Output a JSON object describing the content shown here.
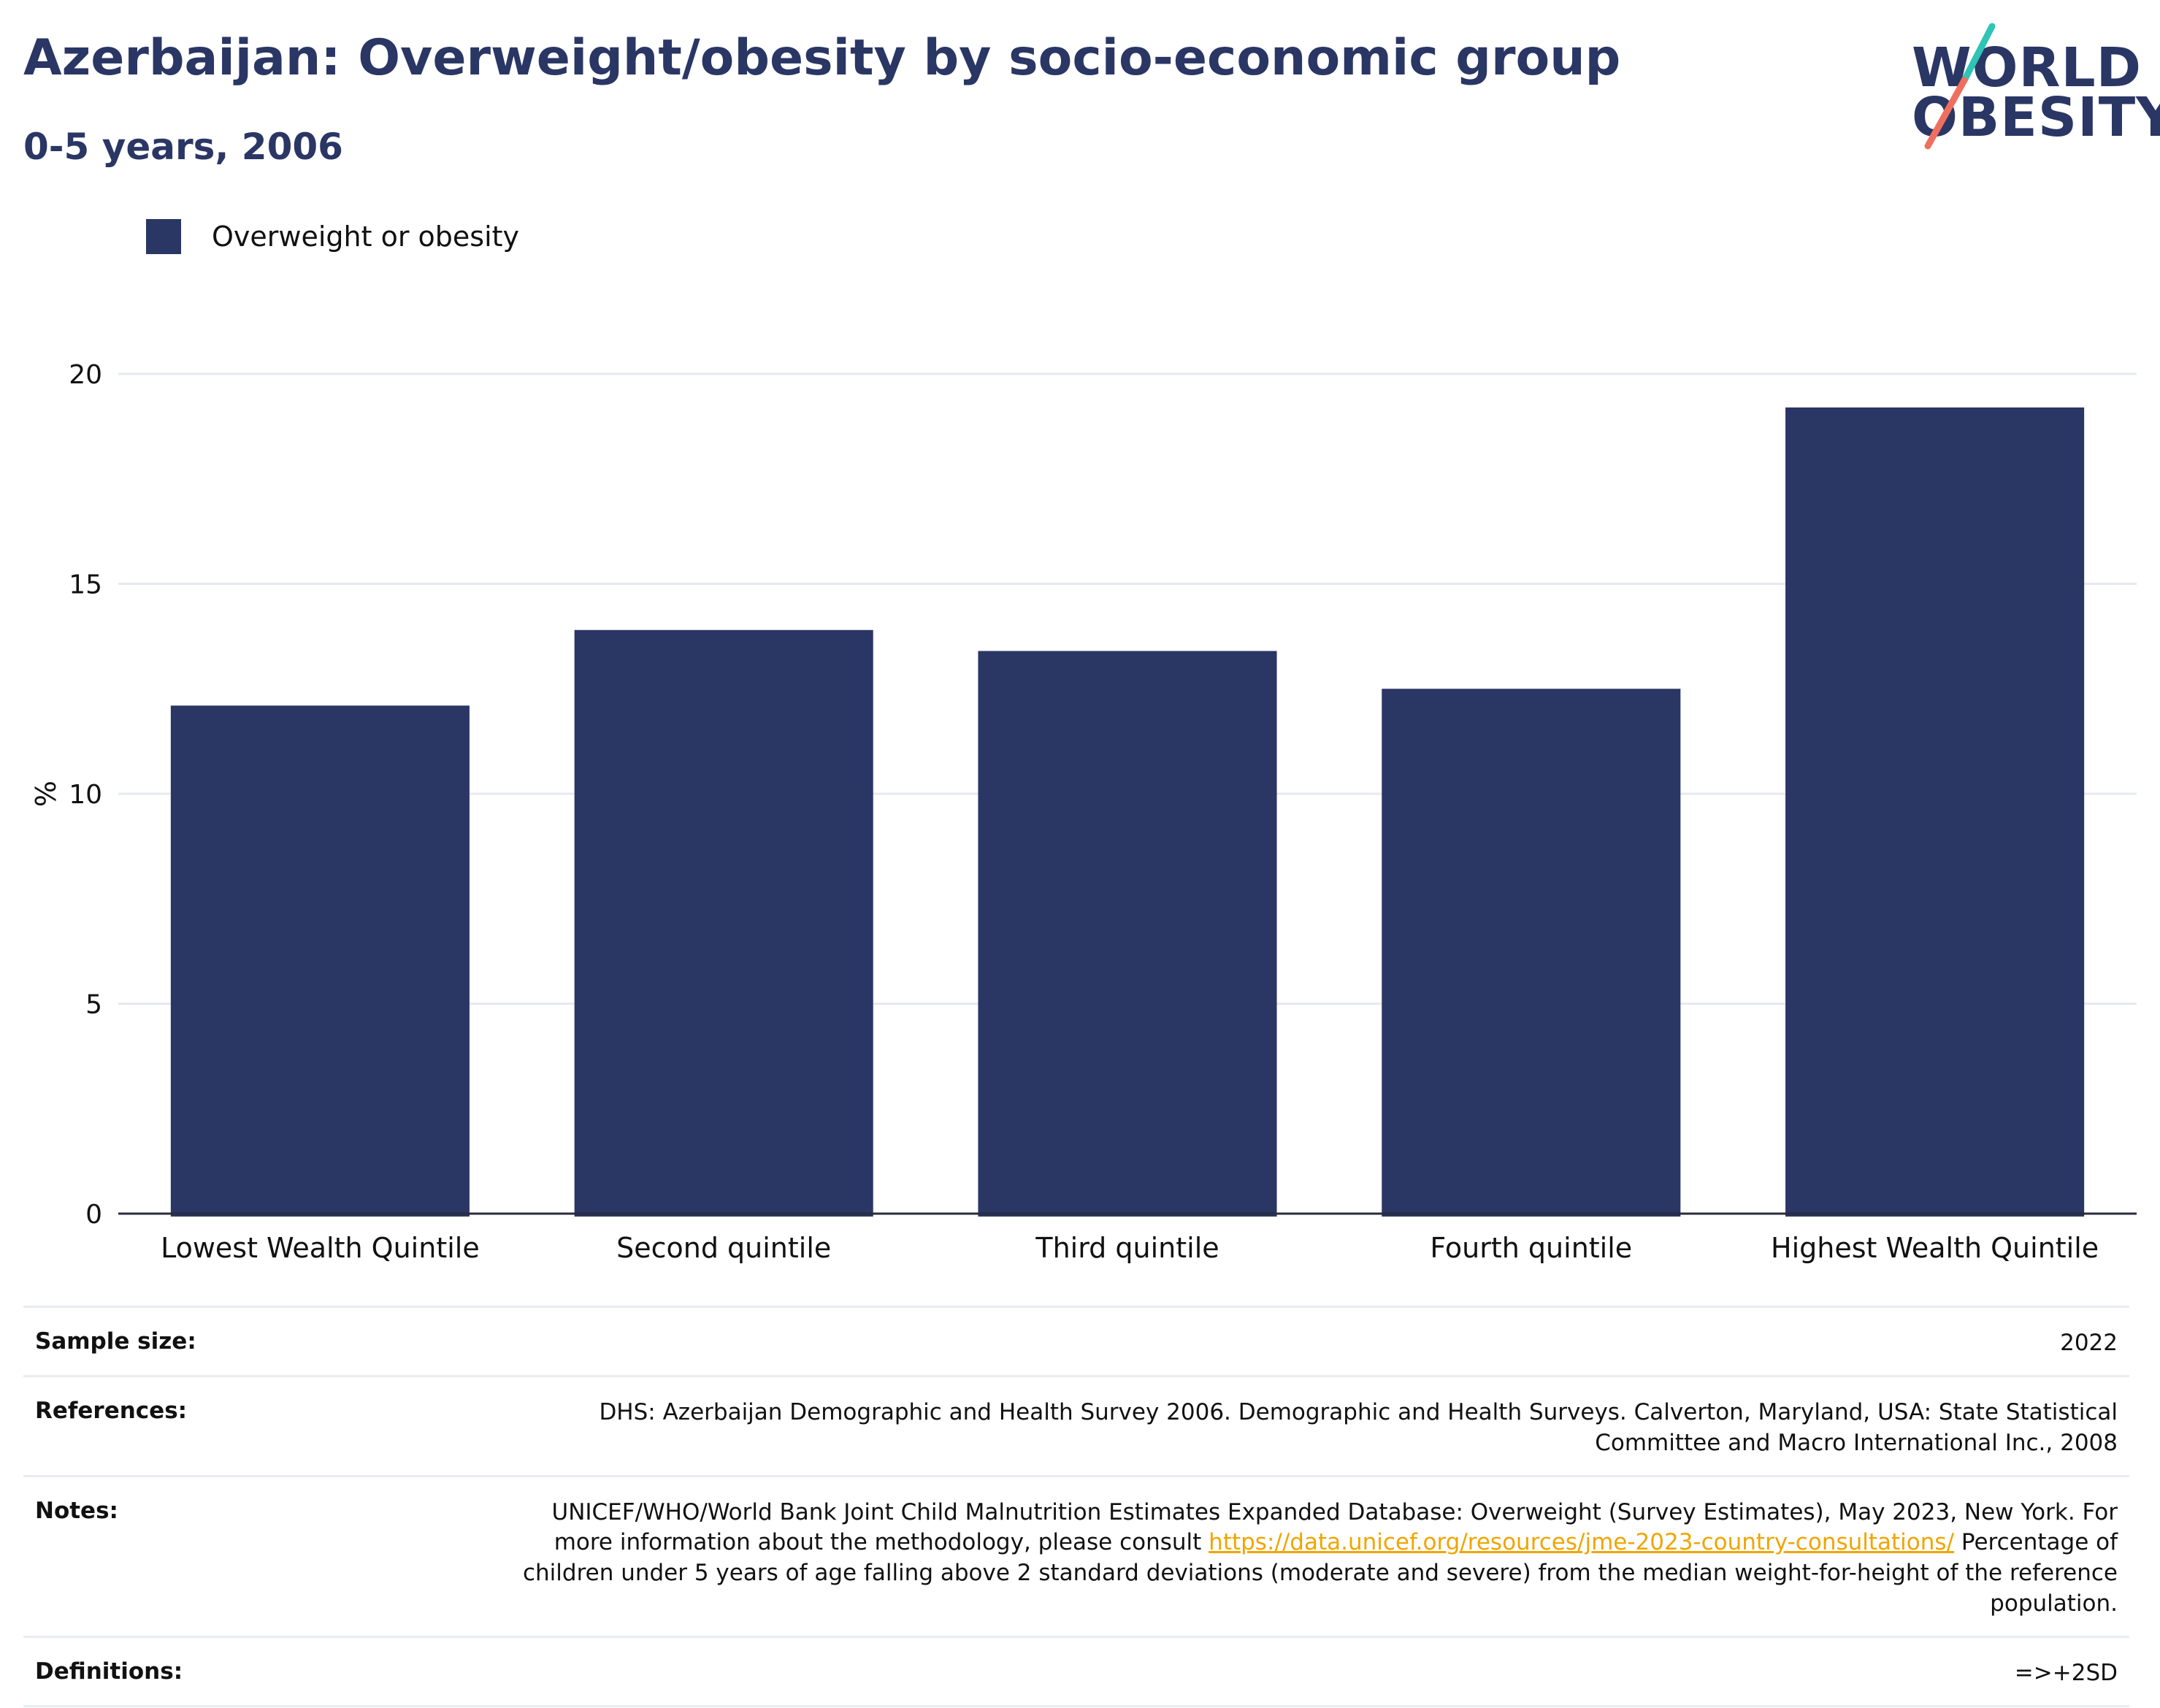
{
  "title": "Azerbaijan: Overweight/obesity by socio-economic group",
  "subtitle": "0-5 years, 2006",
  "logo": {
    "line1": "WORLD",
    "line2": "OBESITY",
    "colors": {
      "text": "#2a3664",
      "slash_top": "#2ec4b6",
      "slash_bottom": "#ef6f5e"
    }
  },
  "legend": [
    {
      "label": "Overweight or obesity",
      "color": "#2a3664"
    }
  ],
  "chart_data": {
    "type": "bar",
    "title": "Azerbaijan: Overweight/obesity by socio-economic group",
    "subtitle": "0-5 years, 2006",
    "categories": [
      "Lowest Wealth Quintile",
      "Second quintile",
      "Third quintile",
      "Fourth quintile",
      "Highest Wealth Quintile"
    ],
    "series": [
      {
        "name": "Overweight or obesity",
        "values": [
          12.1,
          13.9,
          13.4,
          12.5,
          19.2
        ],
        "color": "#2a3664"
      }
    ],
    "xlabel": "",
    "ylabel": "%",
    "ylim": [
      0,
      20
    ],
    "yticks": [
      0,
      5,
      10,
      15,
      20
    ],
    "grid": true,
    "legend_position": "top-left"
  },
  "meta": {
    "sample_size": {
      "key": "Sample size:",
      "value": "2022"
    },
    "references": {
      "key": "References:",
      "value": "DHS: Azerbaijan Demographic and Health Survey 2006. Demographic and Health Surveys. Calverton, Maryland, USA: State Statistical Committee and Macro International Inc., 2008"
    },
    "notes": {
      "key": "Notes:",
      "text_before": "UNICEF/WHO/World Bank Joint Child Malnutrition Estimates Expanded Database: Overweight (Survey Estimates), May 2023, New York. For more information about the methodology, please consult ",
      "link": "https://data.unicef.org/resources/jme-2023-country-consultations/",
      "text_after": " Percentage of children under 5 years of age falling above 2 standard deviations (moderate and severe) from the median weight-for-height of the reference population."
    },
    "definitions": {
      "key": "Definitions:",
      "value": "=>+2SD"
    }
  }
}
